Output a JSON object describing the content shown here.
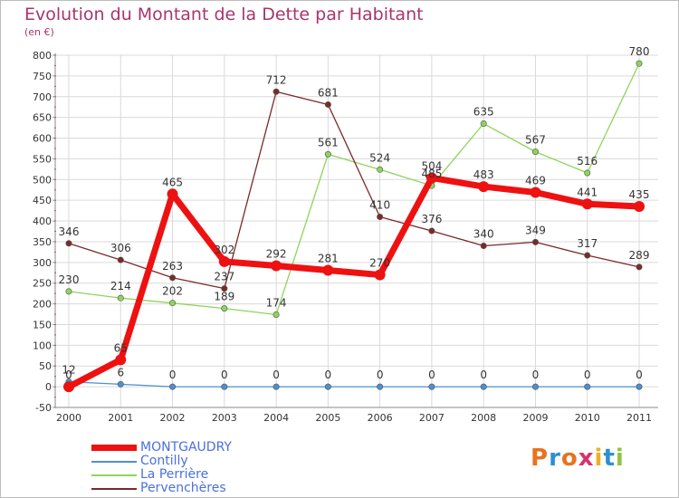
{
  "chart_data": {
    "type": "line",
    "title": "Evolution du Montant de la Dette par Habitant",
    "ylabel": "(en €)",
    "xlabel": "",
    "x": [
      "2000",
      "2001",
      "2002",
      "2003",
      "2004",
      "2005",
      "2006",
      "2007",
      "2008",
      "2009",
      "2010",
      "2011"
    ],
    "ylim": [
      -50,
      800
    ],
    "yticks": [
      -50,
      0,
      50,
      100,
      150,
      200,
      250,
      300,
      350,
      400,
      450,
      500,
      550,
      600,
      650,
      700,
      750,
      800
    ],
    "grid": true,
    "series": [
      {
        "name": "MONTGAUDRY",
        "color": "#ee1111",
        "values": [
          0,
          65,
          465,
          302,
          292,
          281,
          270,
          504,
          483,
          469,
          441,
          435
        ],
        "labels": [
          "0",
          "65",
          "465",
          "302",
          "292",
          "281",
          "270",
          "504",
          "483",
          "469",
          "441",
          "435"
        ],
        "bold": true
      },
      {
        "name": "Contilly",
        "color": "#4f8fd0",
        "values": [
          12,
          6,
          0,
          0,
          0,
          0,
          0,
          0,
          0,
          0,
          0,
          0
        ],
        "labels": [
          "12",
          "6",
          "0",
          "0",
          "0",
          "0",
          "0",
          "0",
          "0",
          "0",
          "0",
          "0"
        ]
      },
      {
        "name": "La Perrière",
        "color": "#8fd45a",
        "values": [
          230,
          214,
          202,
          189,
          174,
          561,
          524,
          485,
          635,
          567,
          516,
          780
        ],
        "labels": [
          "230",
          "214",
          "202",
          "189",
          "174",
          "561",
          "524",
          "485",
          "635",
          "567",
          "516",
          "780"
        ]
      },
      {
        "name": "Pervenchères",
        "color": "#7a2a2a",
        "values": [
          346,
          306,
          263,
          237,
          712,
          681,
          410,
          376,
          340,
          349,
          317,
          289
        ],
        "labels": [
          "346",
          "306",
          "263",
          "237",
          "712",
          "681",
          "410",
          "376",
          "340",
          "349",
          "317",
          "289"
        ]
      }
    ]
  },
  "legend": [
    {
      "label": "MONTGAUDRY",
      "color": "#ee1111",
      "text_color": "#4a6fe0"
    },
    {
      "label": "Contilly",
      "color": "#4f8fd0",
      "text_color": "#4a6fe0"
    },
    {
      "label": "La Perrière",
      "color": "#8fd45a",
      "text_color": "#4a6fe0"
    },
    {
      "label": "Pervenchères",
      "color": "#7a2a2a",
      "text_color": "#4a6fe0"
    }
  ],
  "logo": {
    "text": "Proxiti",
    "letters": [
      "P",
      "r",
      "o",
      "x",
      "i",
      "t",
      "i"
    ]
  }
}
